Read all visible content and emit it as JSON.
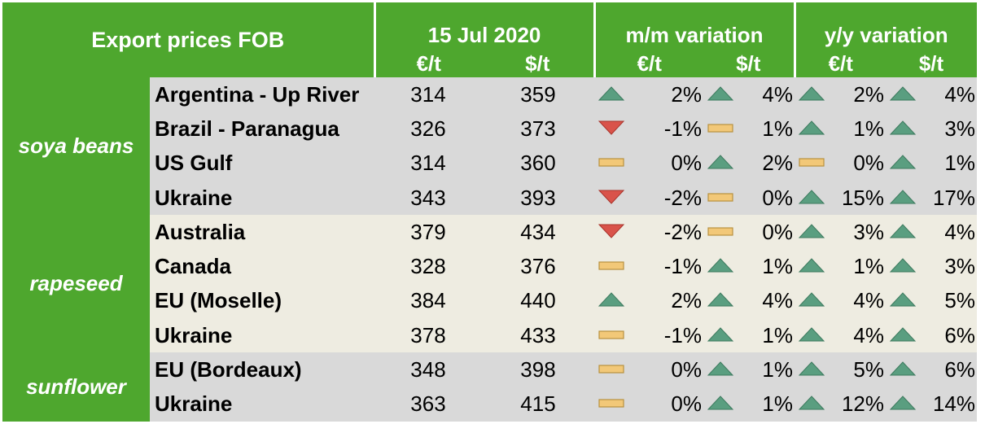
{
  "header": {
    "title": "Export prices FOB",
    "date": "15 Jul 2020",
    "mm_label": "m/m variation",
    "yy_label": "y/y variation",
    "eur_unit": "€/t",
    "usd_unit": "$/t"
  },
  "colors": {
    "header_green": "#4ea72e",
    "soya_bg": "#d9d9d9",
    "rapeseed_bg": "#eeece1",
    "sunflower_bg": "#d9d9d9",
    "up_icon": "#5a9e80",
    "down_icon": "#d9534a",
    "flat_icon": "#f2c878"
  },
  "groups": [
    {
      "name": "soya beans",
      "rows": [
        {
          "origin": "Argentina - Up River",
          "eur": "314",
          "usd": "359",
          "mm_eur": {
            "icon": "up-icon",
            "value": "2%"
          },
          "mm_usd": {
            "icon": "up-icon",
            "value": "4%"
          },
          "yy_eur": {
            "icon": "up-icon",
            "value": "2%"
          },
          "yy_usd": {
            "icon": "up-icon",
            "value": "4%"
          }
        },
        {
          "origin": "Brazil - Paranagua",
          "eur": "326",
          "usd": "373",
          "mm_eur": {
            "icon": "down-icon",
            "value": "-1%"
          },
          "mm_usd": {
            "icon": "flat-icon",
            "value": "1%"
          },
          "yy_eur": {
            "icon": "up-icon",
            "value": "1%"
          },
          "yy_usd": {
            "icon": "up-icon",
            "value": "3%"
          }
        },
        {
          "origin": "US Gulf",
          "eur": "314",
          "usd": "360",
          "mm_eur": {
            "icon": "flat-icon",
            "value": "0%"
          },
          "mm_usd": {
            "icon": "up-icon",
            "value": "2%"
          },
          "yy_eur": {
            "icon": "flat-icon",
            "value": "0%"
          },
          "yy_usd": {
            "icon": "up-icon",
            "value": "1%"
          }
        },
        {
          "origin": "Ukraine",
          "eur": "343",
          "usd": "393",
          "mm_eur": {
            "icon": "down-icon",
            "value": "-2%"
          },
          "mm_usd": {
            "icon": "flat-icon",
            "value": "0%"
          },
          "yy_eur": {
            "icon": "up-icon",
            "value": "15%"
          },
          "yy_usd": {
            "icon": "up-icon",
            "value": "17%"
          }
        }
      ]
    },
    {
      "name": "rapeseed",
      "rows": [
        {
          "origin": "Australia",
          "eur": "379",
          "usd": "434",
          "mm_eur": {
            "icon": "down-icon",
            "value": "-2%"
          },
          "mm_usd": {
            "icon": "flat-icon",
            "value": "0%"
          },
          "yy_eur": {
            "icon": "up-icon",
            "value": "3%"
          },
          "yy_usd": {
            "icon": "up-icon",
            "value": "4%"
          }
        },
        {
          "origin": "Canada",
          "eur": "328",
          "usd": "376",
          "mm_eur": {
            "icon": "flat-icon",
            "value": "-1%"
          },
          "mm_usd": {
            "icon": "up-icon",
            "value": "1%"
          },
          "yy_eur": {
            "icon": "up-icon",
            "value": "1%"
          },
          "yy_usd": {
            "icon": "up-icon",
            "value": "3%"
          }
        },
        {
          "origin": "EU (Moselle)",
          "eur": "384",
          "usd": "440",
          "mm_eur": {
            "icon": "up-icon",
            "value": "2%"
          },
          "mm_usd": {
            "icon": "up-icon",
            "value": "4%"
          },
          "yy_eur": {
            "icon": "up-icon",
            "value": "4%"
          },
          "yy_usd": {
            "icon": "up-icon",
            "value": "5%"
          }
        },
        {
          "origin": "Ukraine",
          "eur": "378",
          "usd": "433",
          "mm_eur": {
            "icon": "flat-icon",
            "value": "-1%"
          },
          "mm_usd": {
            "icon": "up-icon",
            "value": "1%"
          },
          "yy_eur": {
            "icon": "up-icon",
            "value": "4%"
          },
          "yy_usd": {
            "icon": "up-icon",
            "value": "6%"
          }
        }
      ]
    },
    {
      "name": "sunflower",
      "rows": [
        {
          "origin": "EU (Bordeaux)",
          "eur": "348",
          "usd": "398",
          "mm_eur": {
            "icon": "flat-icon",
            "value": "0%"
          },
          "mm_usd": {
            "icon": "up-icon",
            "value": "1%"
          },
          "yy_eur": {
            "icon": "up-icon",
            "value": "5%"
          },
          "yy_usd": {
            "icon": "up-icon",
            "value": "6%"
          }
        },
        {
          "origin": "Ukraine",
          "eur": "363",
          "usd": "415",
          "mm_eur": {
            "icon": "flat-icon",
            "value": "0%"
          },
          "mm_usd": {
            "icon": "up-icon",
            "value": "1%"
          },
          "yy_eur": {
            "icon": "up-icon",
            "value": "12%"
          },
          "yy_usd": {
            "icon": "up-icon",
            "value": "14%"
          }
        }
      ]
    }
  ]
}
